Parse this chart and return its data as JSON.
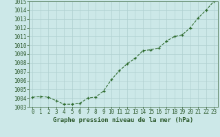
{
  "x": [
    0,
    1,
    2,
    3,
    4,
    5,
    6,
    7,
    8,
    9,
    10,
    11,
    12,
    13,
    14,
    15,
    16,
    17,
    18,
    19,
    20,
    21,
    22,
    23
  ],
  "y": [
    1004.1,
    1004.2,
    1004.1,
    1003.7,
    1003.3,
    1003.3,
    1003.4,
    1004.0,
    1004.1,
    1004.8,
    1006.1,
    1007.1,
    1007.9,
    1008.5,
    1009.4,
    1009.5,
    1009.7,
    1010.5,
    1011.0,
    1011.2,
    1012.0,
    1013.1,
    1014.0,
    1015.0
  ],
  "line_color": "#2d6a2d",
  "marker_color": "#2d6a2d",
  "bg_color": "#cce8e8",
  "grid_color": "#b0d0d0",
  "xlabel": "Graphe pression niveau de la mer (hPa)",
  "ylim": [
    1003,
    1015
  ],
  "xlim": [
    -0.5,
    23.5
  ],
  "yticks": [
    1003,
    1004,
    1005,
    1006,
    1007,
    1008,
    1009,
    1010,
    1011,
    1012,
    1013,
    1014,
    1015
  ],
  "xticks": [
    0,
    1,
    2,
    3,
    4,
    5,
    6,
    7,
    8,
    9,
    10,
    11,
    12,
    13,
    14,
    15,
    16,
    17,
    18,
    19,
    20,
    21,
    22,
    23
  ],
  "xlabel_color": "#2d5a2d",
  "xlabel_fontsize": 6.5,
  "tick_fontsize": 5.5,
  "tick_color": "#2d5a2d",
  "line_width": 0.8,
  "marker_size": 3.5
}
